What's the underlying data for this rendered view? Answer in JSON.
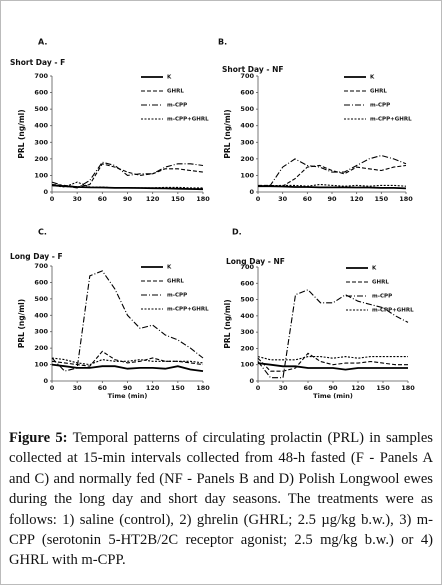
{
  "chart_data": [
    {
      "type": "line",
      "panel": "A.",
      "subtitle": "Short Day - F",
      "y_label": "PRL (ng/ml)",
      "x": [
        0,
        15,
        30,
        45,
        60,
        75,
        90,
        105,
        120,
        135,
        150,
        165,
        180
      ],
      "xlim": [
        0,
        180
      ],
      "xticks": [
        0,
        30,
        60,
        90,
        120,
        150,
        180
      ],
      "ylim": [
        0,
        700
      ],
      "yticks": [
        0,
        100,
        200,
        300,
        400,
        500,
        600,
        700
      ],
      "series": [
        {
          "name": "K",
          "color": "#000000",
          "style": "solid",
          "values": [
            40,
            35,
            30,
            28,
            27,
            25,
            25,
            24,
            23,
            22,
            20,
            18,
            17
          ]
        },
        {
          "name": "GHRL",
          "color": "#000000",
          "style": "dashed",
          "values": [
            45,
            40,
            30,
            45,
            170,
            150,
            120,
            100,
            110,
            140,
            140,
            130,
            120
          ]
        },
        {
          "name": "m-CPP",
          "color": "#000000",
          "style": "dashdot",
          "values": [
            60,
            35,
            25,
            70,
            180,
            160,
            100,
            110,
            110,
            150,
            170,
            170,
            160
          ]
        },
        {
          "name": "m-CPP+GHRL",
          "color": "#000000",
          "style": "dotted",
          "values": [
            40,
            30,
            60,
            30,
            30,
            25,
            25,
            25,
            25,
            28,
            28,
            25,
            25
          ]
        }
      ]
    },
    {
      "type": "line",
      "panel": "B.",
      "subtitle": "Short Day - NF",
      "y_label": "PRL (ng/ml)",
      "x": [
        0,
        15,
        30,
        45,
        60,
        75,
        90,
        105,
        120,
        135,
        150,
        165,
        180
      ],
      "xlim": [
        0,
        180
      ],
      "xticks": [
        0,
        30,
        60,
        90,
        120,
        150,
        180
      ],
      "ylim": [
        0,
        700
      ],
      "yticks": [
        0,
        100,
        200,
        300,
        400,
        500,
        600,
        700
      ],
      "series": [
        {
          "name": "K",
          "color": "#000000",
          "style": "solid",
          "values": [
            35,
            35,
            33,
            30,
            30,
            28,
            28,
            28,
            27,
            27,
            25,
            25,
            22
          ]
        },
        {
          "name": "GHRL",
          "color": "#000000",
          "style": "dashed",
          "values": [
            40,
            40,
            35,
            80,
            150,
            160,
            130,
            110,
            150,
            140,
            130,
            150,
            160
          ]
        },
        {
          "name": "m-CPP",
          "color": "#000000",
          "style": "dashdot",
          "values": [
            35,
            40,
            150,
            200,
            160,
            150,
            120,
            120,
            160,
            200,
            220,
            200,
            170
          ]
        },
        {
          "name": "m-CPP+GHRL",
          "color": "#000000",
          "style": "dotted",
          "values": [
            35,
            38,
            40,
            40,
            35,
            45,
            40,
            35,
            40,
            35,
            40,
            40,
            35
          ]
        }
      ]
    },
    {
      "type": "line",
      "panel": "C.",
      "subtitle": "Long Day - F",
      "y_label": "PRL (ng/ml)",
      "x_label": "Time (min)",
      "x": [
        0,
        15,
        30,
        45,
        60,
        75,
        90,
        105,
        120,
        135,
        150,
        165,
        180
      ],
      "xlim": [
        0,
        180
      ],
      "xticks": [
        0,
        30,
        60,
        90,
        120,
        150,
        180
      ],
      "ylim": [
        0,
        700
      ],
      "yticks": [
        0,
        100,
        200,
        300,
        400,
        500,
        600,
        700
      ],
      "series": [
        {
          "name": "K",
          "color": "#000000",
          "style": "solid",
          "values": [
            100,
            90,
            80,
            80,
            90,
            90,
            75,
            80,
            80,
            75,
            90,
            70,
            60
          ]
        },
        {
          "name": "GHRL",
          "color": "#000000",
          "style": "dashed",
          "values": [
            120,
            110,
            100,
            90,
            180,
            130,
            110,
            120,
            140,
            120,
            120,
            110,
            100
          ]
        },
        {
          "name": "m-CPP",
          "color": "#000000",
          "style": "dashdot",
          "values": [
            140,
            60,
            80,
            640,
            670,
            560,
            400,
            320,
            340,
            280,
            250,
            200,
            140
          ]
        },
        {
          "name": "m-CPP+GHRL",
          "color": "#000000",
          "style": "dotted",
          "values": [
            140,
            130,
            110,
            100,
            130,
            120,
            120,
            130,
            120,
            120,
            120,
            120,
            110
          ]
        }
      ]
    },
    {
      "type": "line",
      "panel": "D.",
      "subtitle": "Long Day - NF",
      "y_label": "PRL (ng/ml)",
      "x_label": "Time (min)",
      "x": [
        0,
        15,
        30,
        45,
        60,
        75,
        90,
        105,
        120,
        135,
        150,
        165,
        180
      ],
      "xlim": [
        0,
        180
      ],
      "xticks": [
        0,
        30,
        60,
        90,
        120,
        150,
        180
      ],
      "ylim": [
        0,
        700
      ],
      "yticks": [
        0,
        100,
        200,
        300,
        400,
        500,
        600,
        700
      ],
      "series": [
        {
          "name": "K",
          "color": "#000000",
          "style": "solid",
          "values": [
            110,
            100,
            90,
            90,
            80,
            80,
            80,
            70,
            80,
            80,
            80,
            80,
            80
          ]
        },
        {
          "name": "GHRL",
          "color": "#000000",
          "style": "dashed",
          "values": [
            140,
            60,
            60,
            80,
            170,
            120,
            100,
            110,
            110,
            120,
            110,
            100,
            100
          ]
        },
        {
          "name": "m-CPP",
          "color": "#000000",
          "style": "dashdot",
          "values": [
            120,
            20,
            20,
            530,
            560,
            480,
            480,
            530,
            490,
            470,
            450,
            400,
            360
          ]
        },
        {
          "name": "m-CPP+GHRL",
          "color": "#000000",
          "style": "dotted",
          "values": [
            150,
            130,
            130,
            130,
            150,
            150,
            140,
            150,
            140,
            150,
            150,
            150,
            150
          ]
        }
      ]
    }
  ],
  "caption": {
    "label": "Figure 5:",
    "text": "Temporal patterns of circulating prolactin (PRL) in samples collected at 15-min intervals collected from 48-h fasted (F - Panels A and C) and normally fed (NF - Panels B and D) Polish Longwool ewes during the long day and short day seasons. The treatments were as follows: 1) saline (control), 2) ghrelin (GHRL; 2.5 µg/kg b.w.), 3) m-CPP (serotonin 5-HT2B/2C receptor agonist; 2.5 mg/kg b.w.) or 4) GHRL with m-CPP."
  }
}
